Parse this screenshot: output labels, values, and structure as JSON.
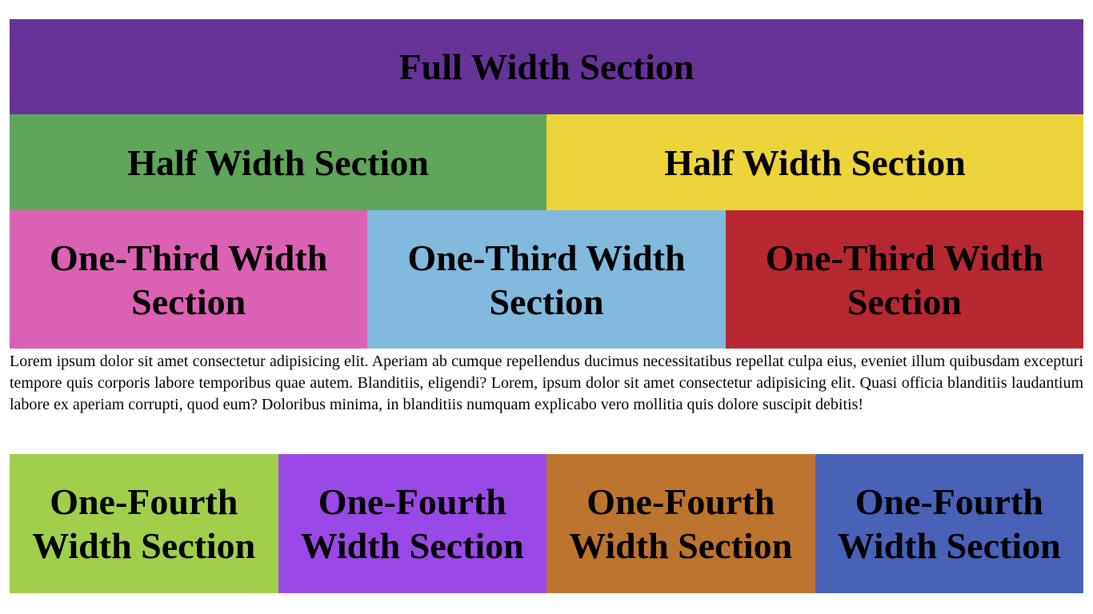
{
  "full": {
    "label": "Full Width Section",
    "color": "#663399"
  },
  "half": [
    {
      "label": "Half Width Section",
      "color": "#5fa55a"
    },
    {
      "label": "Half Width Section",
      "color": "#edd43b"
    }
  ],
  "third": [
    {
      "label": "One-Third Width Section",
      "color": "#db62b3"
    },
    {
      "label": "One-Third Width Section",
      "color": "#82badd"
    },
    {
      "label": "One-Third Width Section",
      "color": "#b72833"
    }
  ],
  "paragraph": "Lorem ipsum dolor sit amet consectetur adipisicing elit. Aperiam ab cumque repellendus ducimus necessitatibus repellat culpa eius, eveniet illum quibusdam excepturi tempore quis corporis labore temporibus quae autem. Blanditiis, eligendi? Lorem, ipsum dolor sit amet consectetur adipisicing elit. Quasi officia blanditiis laudantium labore ex aperiam corrupti, quod eum? Doloribus minima, in blanditiis numquam explicabo vero mollitia quis dolore suscipit debitis!",
  "fourth": [
    {
      "label": "One-Fourth Width Section",
      "color": "#a2cf4b"
    },
    {
      "label": "One-Fourth Width Section",
      "color": "#9a49e6"
    },
    {
      "label": "One-Fourth Width Section",
      "color": "#bd742f"
    },
    {
      "label": "One-Fourth Width Section",
      "color": "#4962b8"
    }
  ]
}
